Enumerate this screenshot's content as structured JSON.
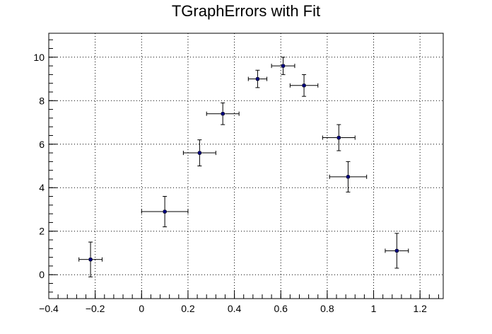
{
  "chart_data": {
    "type": "scatter",
    "title": "TGraphErrors with Fit",
    "xlabel": "",
    "ylabel": "",
    "xlim": [
      -0.4,
      1.3
    ],
    "ylim": [
      -1.1,
      11.1
    ],
    "x_ticks": [
      -0.4,
      -0.2,
      0,
      0.2,
      0.4,
      0.6,
      0.8,
      1,
      1.2
    ],
    "x_tick_labels": [
      "−0.4",
      "−0.2",
      "0",
      "0.2",
      "0.4",
      "0.6",
      "0.8",
      "1",
      "1.2"
    ],
    "y_ticks": [
      0,
      2,
      4,
      6,
      8,
      10
    ],
    "y_tick_labels": [
      "0",
      "2",
      "4",
      "6",
      "8",
      "10"
    ],
    "grid": true,
    "grid_style": "dotted",
    "marker_color": "#00007f",
    "points": [
      {
        "x": -0.22,
        "y": 0.7,
        "ex": 0.05,
        "ey": 0.8
      },
      {
        "x": 0.1,
        "y": 2.9,
        "ex": 0.1,
        "ey": 0.7
      },
      {
        "x": 0.25,
        "y": 5.6,
        "ex": 0.07,
        "ey": 0.6
      },
      {
        "x": 0.35,
        "y": 7.4,
        "ex": 0.07,
        "ey": 0.5
      },
      {
        "x": 0.5,
        "y": 9.0,
        "ex": 0.04,
        "ey": 0.4
      },
      {
        "x": 0.61,
        "y": 9.6,
        "ex": 0.05,
        "ey": 0.4
      },
      {
        "x": 0.7,
        "y": 8.7,
        "ex": 0.06,
        "ey": 0.5
      },
      {
        "x": 0.85,
        "y": 6.3,
        "ex": 0.07,
        "ey": 0.6
      },
      {
        "x": 0.89,
        "y": 4.5,
        "ex": 0.08,
        "ey": 0.7
      },
      {
        "x": 1.1,
        "y": 1.1,
        "ex": 0.05,
        "ey": 0.8
      }
    ]
  }
}
